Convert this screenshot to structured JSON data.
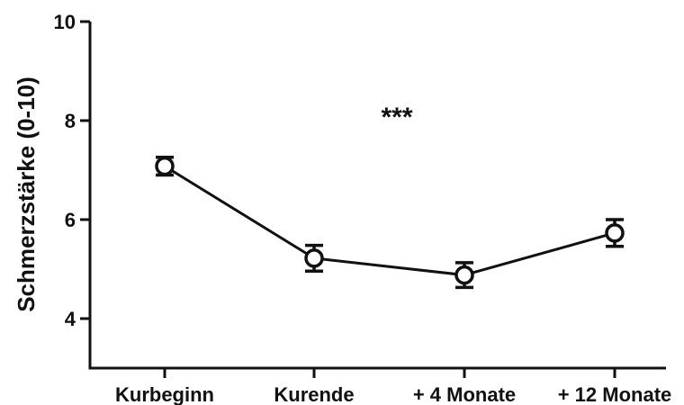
{
  "chart_data": {
    "type": "line",
    "title": "",
    "xlabel": "",
    "ylabel": "Schmerzstärke (0-10)",
    "categories": [
      "Kurbeginn",
      "Kurende",
      "+ 4 Monate",
      "+ 12 Monate"
    ],
    "series": [
      {
        "values": [
          7.08,
          5.22,
          4.88,
          5.73
        ],
        "errors": [
          0.18,
          0.26,
          0.25,
          0.27
        ],
        "marker": "open-circle",
        "color": "#111111"
      }
    ],
    "ylim": [
      3.0,
      10.0
    ],
    "yticks": [
      4,
      6,
      8,
      10
    ],
    "annotation": "***",
    "grid": false,
    "legend": "none"
  }
}
